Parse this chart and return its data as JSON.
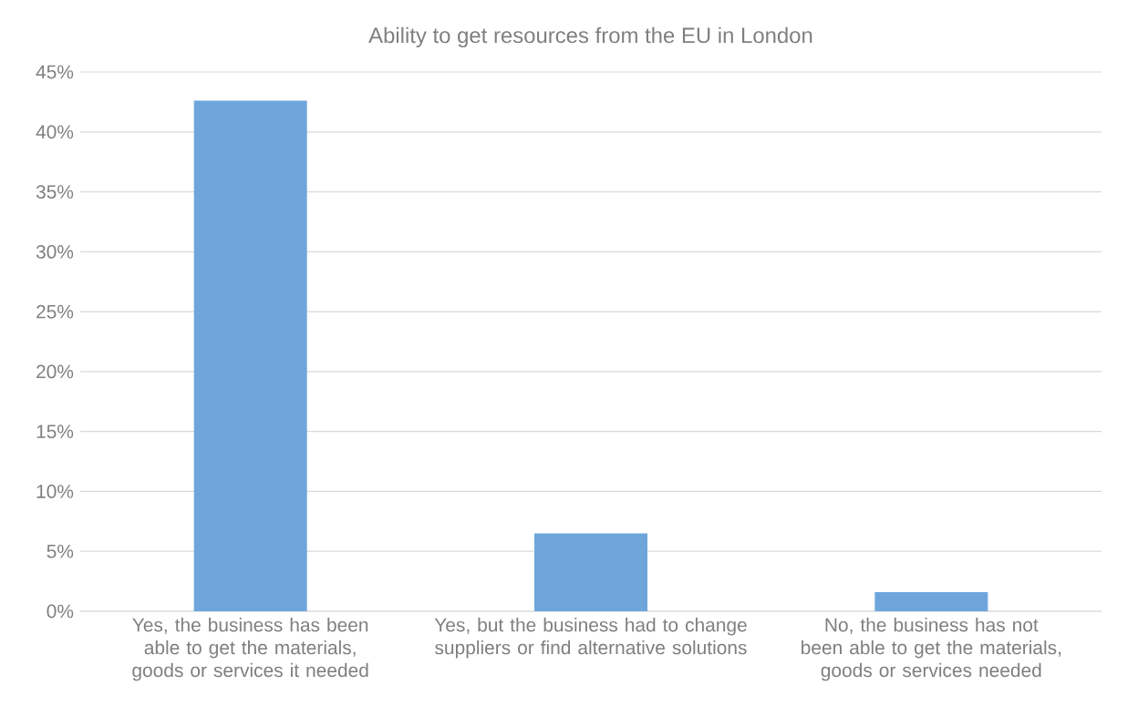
{
  "chart_data": {
    "type": "bar",
    "title": "Ability to get resources from the EU in London",
    "categories": [
      "Yes, the business has been able to get the materials, goods or services it needed",
      "Yes, but the business had to change suppliers or find alternative solutions",
      "No, the business has not been able to get the materials, goods or services needed"
    ],
    "values": [
      42.6,
      6.5,
      1.6
    ],
    "color": "#6ea6dc",
    "ylim": [
      0,
      45
    ],
    "yticks": [
      {
        "value": 0,
        "label": "0%"
      },
      {
        "value": 5,
        "label": "5%"
      },
      {
        "value": 10,
        "label": "10%"
      },
      {
        "value": 15,
        "label": "15%"
      },
      {
        "value": 20,
        "label": "20%"
      },
      {
        "value": 25,
        "label": "25%"
      },
      {
        "value": 30,
        "label": "30%"
      },
      {
        "value": 35,
        "label": "35%"
      },
      {
        "value": 40,
        "label": "40%"
      },
      {
        "value": 45,
        "label": "45%"
      }
    ],
    "grid": "y"
  }
}
